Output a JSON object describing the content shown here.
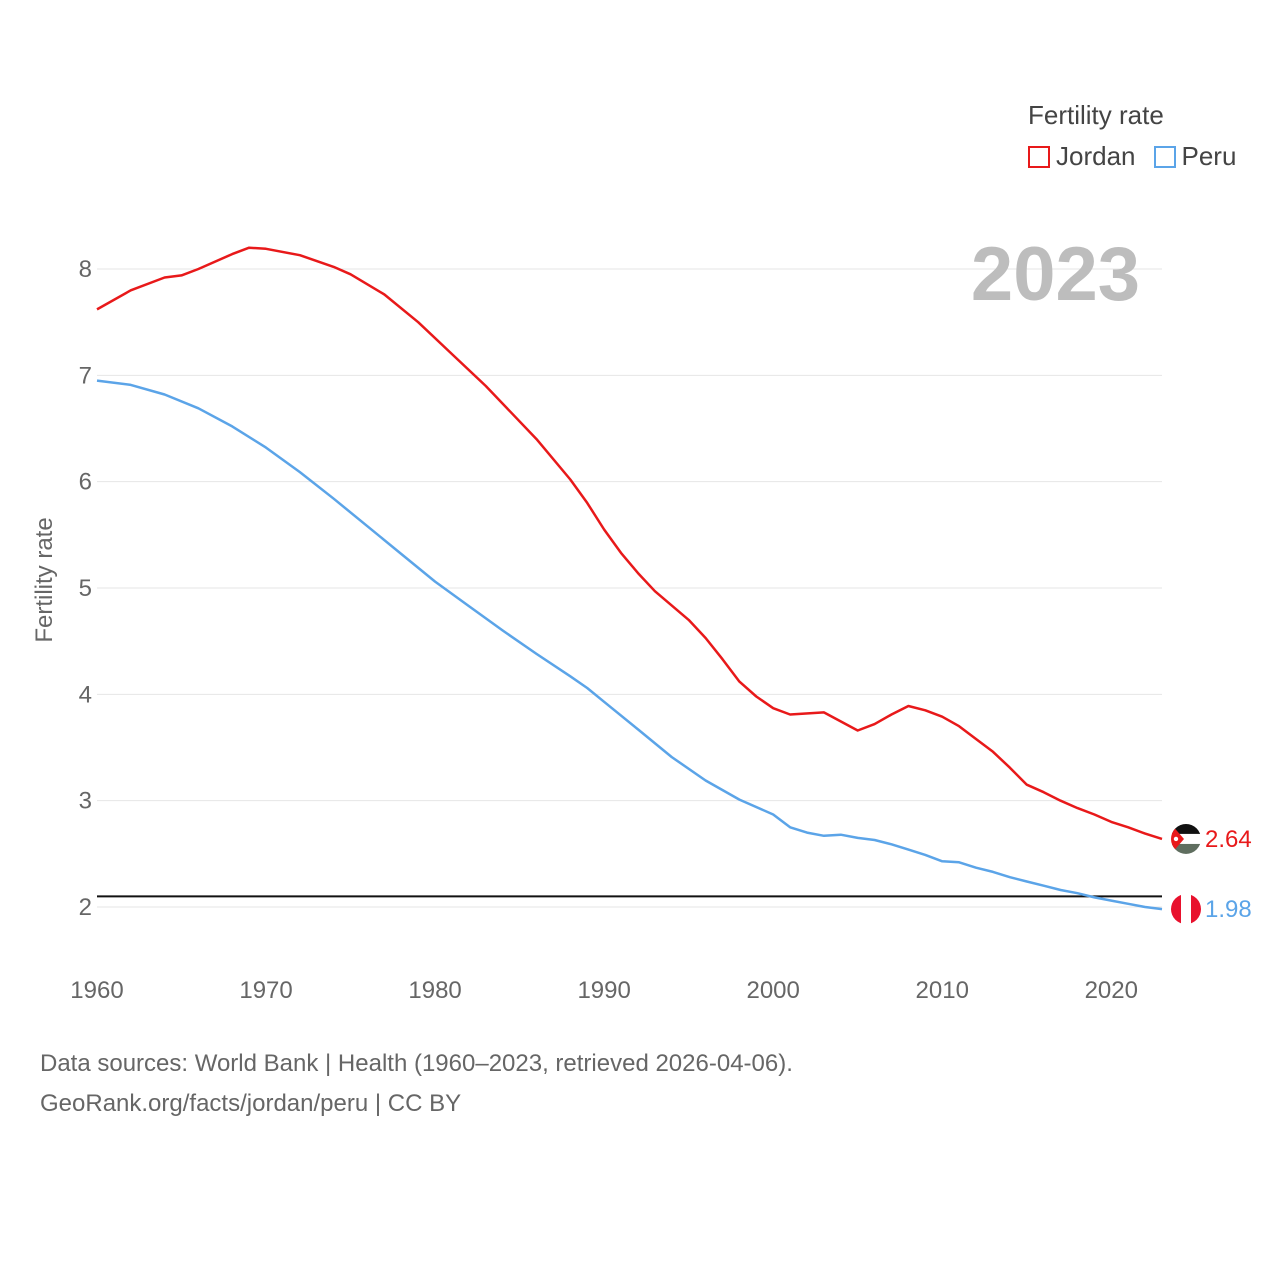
{
  "chart_data": {
    "type": "line",
    "title": "Fertility rate",
    "ylabel": "Fertility rate",
    "xlabel": "",
    "year_label": "2023",
    "xlim": [
      1960,
      2023
    ],
    "ylim": [
      1.5,
      8.5
    ],
    "x_ticks": [
      1960,
      1970,
      1980,
      1990,
      2000,
      2010,
      2020
    ],
    "y_ticks": [
      2,
      3,
      4,
      5,
      6,
      7,
      8
    ],
    "reference_line": 2.1,
    "series": [
      {
        "name": "Jordan",
        "color": "#e8191a",
        "end_label": "2.64",
        "points": [
          [
            1960,
            7.62
          ],
          [
            1962,
            7.8
          ],
          [
            1964,
            7.92
          ],
          [
            1965,
            7.94
          ],
          [
            1966,
            8.0
          ],
          [
            1968,
            8.14
          ],
          [
            1969,
            8.2
          ],
          [
            1970,
            8.19
          ],
          [
            1972,
            8.13
          ],
          [
            1974,
            8.02
          ],
          [
            1975,
            7.95
          ],
          [
            1977,
            7.76
          ],
          [
            1979,
            7.5
          ],
          [
            1981,
            7.2
          ],
          [
            1983,
            6.9
          ],
          [
            1986,
            6.4
          ],
          [
            1988,
            6.02
          ],
          [
            1989,
            5.8
          ],
          [
            1990,
            5.55
          ],
          [
            1991,
            5.33
          ],
          [
            1992,
            5.14
          ],
          [
            1993,
            4.97
          ],
          [
            1995,
            4.7
          ],
          [
            1996,
            4.53
          ],
          [
            1997,
            4.33
          ],
          [
            1998,
            4.12
          ],
          [
            1999,
            3.98
          ],
          [
            2000,
            3.87
          ],
          [
            2001,
            3.81
          ],
          [
            2003,
            3.83
          ],
          [
            2005,
            3.66
          ],
          [
            2006,
            3.72
          ],
          [
            2007,
            3.81
          ],
          [
            2008,
            3.89
          ],
          [
            2009,
            3.85
          ],
          [
            2010,
            3.79
          ],
          [
            2011,
            3.7
          ],
          [
            2012,
            3.58
          ],
          [
            2013,
            3.46
          ],
          [
            2014,
            3.31
          ],
          [
            2015,
            3.15
          ],
          [
            2016,
            3.08
          ],
          [
            2017,
            3.0
          ],
          [
            2018,
            2.93
          ],
          [
            2019,
            2.87
          ],
          [
            2020,
            2.8
          ],
          [
            2021,
            2.75
          ],
          [
            2022,
            2.69
          ],
          [
            2023,
            2.64
          ]
        ]
      },
      {
        "name": "Peru",
        "color": "#5ba4e8",
        "end_label": "1.98",
        "points": [
          [
            1960,
            6.95
          ],
          [
            1962,
            6.91
          ],
          [
            1964,
            6.82
          ],
          [
            1966,
            6.69
          ],
          [
            1968,
            6.52
          ],
          [
            1970,
            6.32
          ],
          [
            1972,
            6.09
          ],
          [
            1974,
            5.84
          ],
          [
            1976,
            5.58
          ],
          [
            1978,
            5.32
          ],
          [
            1980,
            5.06
          ],
          [
            1982,
            4.83
          ],
          [
            1984,
            4.6
          ],
          [
            1986,
            4.38
          ],
          [
            1988,
            4.17
          ],
          [
            1989,
            4.06
          ],
          [
            1990,
            3.93
          ],
          [
            1992,
            3.67
          ],
          [
            1994,
            3.41
          ],
          [
            1996,
            3.19
          ],
          [
            1998,
            3.01
          ],
          [
            2000,
            2.87
          ],
          [
            2001,
            2.75
          ],
          [
            2002,
            2.7
          ],
          [
            2003,
            2.67
          ],
          [
            2004,
            2.68
          ],
          [
            2005,
            2.65
          ],
          [
            2006,
            2.63
          ],
          [
            2007,
            2.59
          ],
          [
            2008,
            2.54
          ],
          [
            2009,
            2.49
          ],
          [
            2010,
            2.43
          ],
          [
            2011,
            2.42
          ],
          [
            2012,
            2.37
          ],
          [
            2013,
            2.33
          ],
          [
            2014,
            2.28
          ],
          [
            2015,
            2.24
          ],
          [
            2016,
            2.2
          ],
          [
            2017,
            2.16
          ],
          [
            2018,
            2.13
          ],
          [
            2019,
            2.09
          ],
          [
            2020,
            2.06
          ],
          [
            2021,
            2.03
          ],
          [
            2022,
            2.0
          ],
          [
            2023,
            1.98
          ]
        ]
      }
    ]
  },
  "legend": {
    "title": "Fertility rate",
    "items": [
      {
        "label": "Jordan",
        "color": "#e8191a"
      },
      {
        "label": "Peru",
        "color": "#5ba4e8"
      }
    ]
  },
  "footer": {
    "line1": "Data sources: World Bank | Health (1960–2023, retrieved 2026-04-06).",
    "line2": "GeoRank.org/facts/jordan/peru | CC BY"
  }
}
